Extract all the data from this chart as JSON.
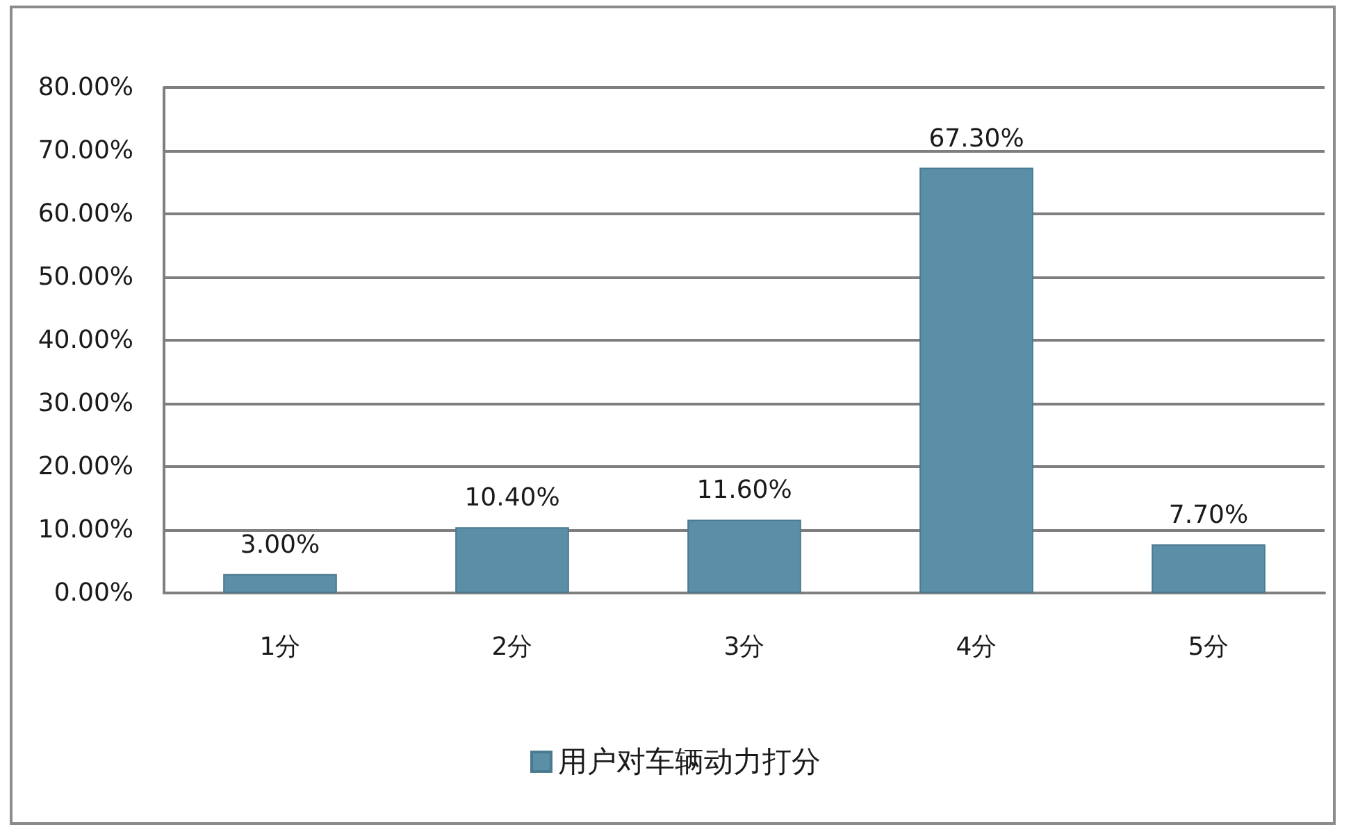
{
  "chart_data": {
    "type": "bar",
    "categories": [
      "1分",
      "2分",
      "3分",
      "4分",
      "5分"
    ],
    "series": [
      {
        "name": "用户对车辆动力打分",
        "color": "#5b8fa8",
        "values": [
          3.0,
          10.4,
          11.6,
          67.3,
          7.7
        ],
        "value_labels": [
          "3.00%",
          "10.40%",
          "11.60%",
          "67.30%",
          "7.70%"
        ]
      }
    ],
    "ylim": [
      0,
      80
    ],
    "yticks": [
      {
        "value": 0,
        "label": "0.00%"
      },
      {
        "value": 10,
        "label": "10.00%"
      },
      {
        "value": 20,
        "label": "20.00%"
      },
      {
        "value": 30,
        "label": "30.00%"
      },
      {
        "value": 40,
        "label": "40.00%"
      },
      {
        "value": 50,
        "label": "50.00%"
      },
      {
        "value": 60,
        "label": "60.00%"
      },
      {
        "value": 70,
        "label": "70.00%"
      },
      {
        "value": 80,
        "label": "80.00%"
      }
    ],
    "grid": "y",
    "legend": "bottom"
  }
}
